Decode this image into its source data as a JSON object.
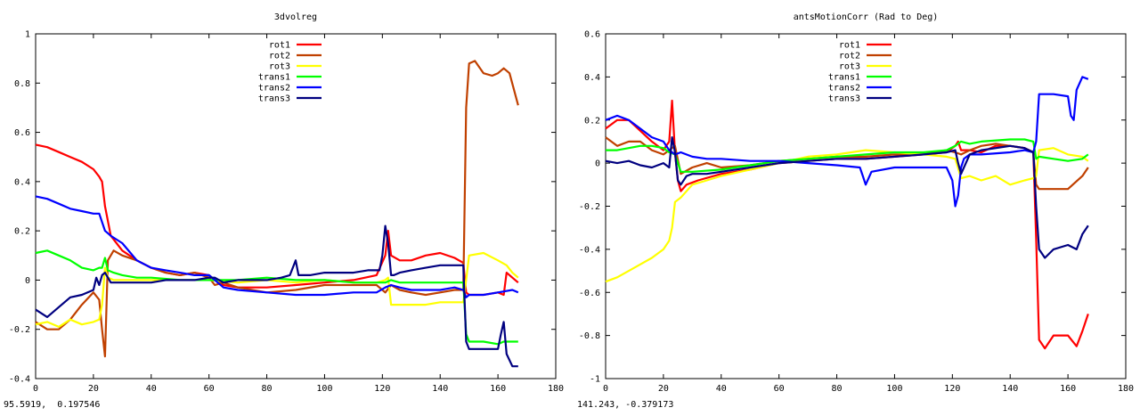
{
  "status": {
    "left_coords": "95.5919,  0.197546",
    "right_coords": "141.243, -0.379173"
  },
  "chart_data": [
    {
      "type": "line",
      "title": "3dvolreg",
      "xlabel": "",
      "ylabel": "",
      "xlim": [
        0,
        180
      ],
      "ylim": [
        -0.4,
        1
      ],
      "x_ticks": [
        0,
        20,
        40,
        60,
        80,
        100,
        120,
        140,
        160,
        180
      ],
      "y_ticks": [
        -0.4,
        -0.2,
        0,
        0.2,
        0.4,
        0.6,
        0.8,
        1
      ],
      "y_tick_labels": [
        "-0.4",
        "-0.2",
        "0",
        "0.2",
        "0.4",
        "0.6",
        "0.8",
        "1"
      ],
      "grid": false,
      "legend_position": "top-center",
      "series": [
        {
          "name": "rot1",
          "color": "#ff0000",
          "x": [
            0,
            4,
            8,
            12,
            16,
            20,
            22,
            23,
            24,
            26,
            30,
            35,
            40,
            45,
            50,
            55,
            60,
            62,
            65,
            70,
            80,
            90,
            100,
            110,
            118,
            121,
            122,
            123,
            126,
            130,
            135,
            140,
            145,
            148,
            149,
            150,
            155,
            160,
            162,
            163,
            165,
            167
          ],
          "y": [
            0.55,
            0.54,
            0.52,
            0.5,
            0.48,
            0.45,
            0.42,
            0.4,
            0.3,
            0.18,
            0.12,
            0.08,
            0.05,
            0.03,
            0.02,
            0.03,
            0.02,
            0.0,
            -0.02,
            -0.03,
            -0.03,
            -0.02,
            -0.01,
            0.0,
            0.02,
            0.1,
            0.2,
            0.1,
            0.08,
            0.08,
            0.1,
            0.11,
            0.09,
            0.07,
            -0.05,
            -0.06,
            -0.06,
            -0.05,
            -0.06,
            0.03,
            0.01,
            -0.01
          ]
        },
        {
          "name": "rot2",
          "color": "#c04000",
          "x": [
            0,
            4,
            8,
            12,
            16,
            20,
            22,
            23,
            24,
            25,
            27,
            30,
            35,
            40,
            45,
            50,
            55,
            60,
            62,
            65,
            70,
            80,
            90,
            100,
            110,
            118,
            121,
            123,
            126,
            130,
            135,
            140,
            145,
            148,
            149,
            150,
            152,
            155,
            158,
            160,
            162,
            164,
            167
          ],
          "y": [
            -0.17,
            -0.2,
            -0.2,
            -0.16,
            -0.1,
            -0.05,
            -0.08,
            -0.2,
            -0.31,
            0.08,
            0.12,
            0.1,
            0.08,
            0.05,
            0.03,
            0.02,
            0.03,
            0.01,
            -0.02,
            -0.01,
            -0.03,
            -0.05,
            -0.04,
            -0.02,
            -0.02,
            -0.02,
            -0.05,
            -0.02,
            -0.04,
            -0.05,
            -0.06,
            -0.05,
            -0.04,
            -0.04,
            0.7,
            0.88,
            0.89,
            0.84,
            0.83,
            0.84,
            0.86,
            0.84,
            0.71
          ]
        },
        {
          "name": "rot3",
          "color": "#ffff00",
          "x": [
            0,
            4,
            8,
            12,
            16,
            20,
            22,
            23,
            24,
            25,
            27,
            30,
            35,
            40,
            50,
            60,
            70,
            80,
            90,
            100,
            110,
            118,
            121,
            122,
            123,
            126,
            130,
            135,
            140,
            145,
            148,
            149,
            150,
            155,
            160,
            163,
            165,
            167
          ],
          "y": [
            -0.18,
            -0.17,
            -0.19,
            -0.16,
            -0.18,
            -0.17,
            -0.16,
            -0.1,
            0.05,
            0.01,
            0.0,
            0.0,
            0.0,
            0.0,
            0.0,
            0.0,
            -0.01,
            0.0,
            -0.01,
            0.0,
            -0.01,
            -0.01,
            0.0,
            0.01,
            -0.1,
            -0.1,
            -0.1,
            -0.1,
            -0.09,
            -0.09,
            -0.09,
            0.0,
            0.1,
            0.11,
            0.08,
            0.06,
            0.03,
            0.01
          ]
        },
        {
          "name": "trans1",
          "color": "#00ff00",
          "x": [
            0,
            4,
            8,
            12,
            16,
            20,
            22,
            23,
            24,
            25,
            27,
            30,
            35,
            40,
            50,
            60,
            70,
            80,
            90,
            100,
            110,
            118,
            121,
            123,
            126,
            130,
            140,
            148,
            149,
            150,
            155,
            160,
            162,
            163,
            165,
            167
          ],
          "y": [
            0.11,
            0.12,
            0.1,
            0.08,
            0.05,
            0.04,
            0.05,
            0.05,
            0.09,
            0.04,
            0.03,
            0.02,
            0.01,
            0.01,
            0.0,
            0.0,
            0.0,
            0.01,
            0.0,
            0.0,
            -0.01,
            -0.01,
            -0.01,
            0.0,
            -0.01,
            -0.01,
            -0.01,
            -0.01,
            -0.22,
            -0.25,
            -0.25,
            -0.26,
            -0.25,
            -0.25,
            -0.25,
            -0.25
          ]
        },
        {
          "name": "trans2",
          "color": "#0000ff",
          "x": [
            0,
            4,
            8,
            12,
            16,
            20,
            22,
            24,
            26,
            30,
            35,
            40,
            45,
            50,
            55,
            60,
            62,
            65,
            70,
            80,
            90,
            100,
            110,
            118,
            121,
            123,
            126,
            130,
            140,
            145,
            148,
            149,
            150,
            155,
            160,
            165,
            167
          ],
          "y": [
            0.34,
            0.33,
            0.31,
            0.29,
            0.28,
            0.27,
            0.27,
            0.2,
            0.18,
            0.15,
            0.08,
            0.05,
            0.04,
            0.03,
            0.02,
            0.02,
            0.0,
            -0.03,
            -0.04,
            -0.05,
            -0.06,
            -0.06,
            -0.05,
            -0.05,
            -0.03,
            -0.02,
            -0.03,
            -0.04,
            -0.04,
            -0.03,
            -0.04,
            -0.07,
            -0.06,
            -0.06,
            -0.05,
            -0.04,
            -0.05
          ]
        },
        {
          "name": "trans3",
          "color": "#000080",
          "x": [
            0,
            4,
            8,
            12,
            16,
            20,
            21,
            22,
            23,
            24,
            26,
            30,
            35,
            40,
            45,
            50,
            55,
            60,
            62,
            65,
            70,
            80,
            85,
            88,
            90,
            91,
            95,
            100,
            110,
            115,
            119,
            120,
            121,
            122,
            123,
            124,
            126,
            130,
            135,
            140,
            145,
            148,
            149,
            150,
            155,
            160,
            161,
            162,
            163,
            165,
            167
          ],
          "y": [
            -0.12,
            -0.15,
            -0.11,
            -0.07,
            -0.06,
            -0.04,
            0.01,
            -0.02,
            0.02,
            0.03,
            -0.01,
            -0.01,
            -0.01,
            -0.01,
            0.0,
            0.0,
            0.0,
            0.01,
            0.01,
            -0.01,
            0.0,
            0.0,
            0.01,
            0.02,
            0.08,
            0.02,
            0.02,
            0.03,
            0.03,
            0.04,
            0.04,
            0.1,
            0.22,
            0.15,
            0.02,
            0.02,
            0.03,
            0.04,
            0.05,
            0.06,
            0.06,
            0.06,
            -0.25,
            -0.28,
            -0.28,
            -0.28,
            -0.22,
            -0.17,
            -0.3,
            -0.35,
            -0.35
          ]
        }
      ]
    },
    {
      "type": "line",
      "title": "antsMotionCorr (Rad to Deg)",
      "xlabel": "",
      "ylabel": "",
      "xlim": [
        0,
        180
      ],
      "ylim": [
        -1,
        0.6
      ],
      "x_ticks": [
        0,
        20,
        40,
        60,
        80,
        100,
        120,
        140,
        160,
        180
      ],
      "y_ticks": [
        -1,
        -0.8,
        -0.6,
        -0.4,
        -0.2,
        0,
        0.2,
        0.4,
        0.6
      ],
      "y_tick_labels": [
        "-1",
        "-0.8",
        "-0.6",
        "-0.4",
        "-0.2",
        "0",
        "0.2",
        "0.4",
        "0.6"
      ],
      "grid": false,
      "legend_position": "top-center",
      "series": [
        {
          "name": "rot1",
          "color": "#ff0000",
          "x": [
            0,
            4,
            8,
            12,
            16,
            20,
            22,
            23,
            24,
            25,
            26,
            28,
            32,
            40,
            50,
            60,
            70,
            80,
            90,
            100,
            110,
            118,
            121,
            122,
            123,
            126,
            130,
            135,
            140,
            145,
            148,
            149,
            150,
            152,
            155,
            160,
            163,
            165,
            167
          ],
          "y": [
            0.16,
            0.2,
            0.2,
            0.15,
            0.1,
            0.06,
            0.1,
            0.29,
            0.05,
            -0.08,
            -0.13,
            -0.1,
            -0.08,
            -0.05,
            -0.03,
            0.0,
            0.01,
            0.02,
            0.02,
            0.03,
            0.04,
            0.05,
            0.08,
            0.1,
            0.06,
            0.06,
            0.05,
            0.08,
            0.08,
            0.07,
            0.05,
            -0.35,
            -0.82,
            -0.86,
            -0.8,
            -0.8,
            -0.85,
            -0.78,
            -0.7
          ]
        },
        {
          "name": "rot2",
          "color": "#c04000",
          "x": [
            0,
            4,
            8,
            12,
            16,
            20,
            22,
            24,
            26,
            30,
            35,
            40,
            50,
            60,
            70,
            80,
            90,
            100,
            110,
            118,
            121,
            123,
            126,
            130,
            135,
            140,
            145,
            148,
            149,
            150,
            155,
            160,
            165,
            167
          ],
          "y": [
            0.12,
            0.08,
            0.1,
            0.1,
            0.06,
            0.04,
            0.06,
            0.08,
            -0.05,
            -0.02,
            0.0,
            -0.02,
            -0.01,
            0.01,
            0.02,
            0.03,
            0.03,
            0.04,
            0.04,
            0.06,
            0.05,
            0.04,
            0.06,
            0.08,
            0.09,
            0.08,
            0.07,
            0.05,
            -0.1,
            -0.12,
            -0.12,
            -0.12,
            -0.06,
            -0.02
          ]
        },
        {
          "name": "rot3",
          "color": "#ffff00",
          "x": [
            0,
            4,
            8,
            12,
            16,
            20,
            22,
            23,
            24,
            26,
            30,
            35,
            40,
            50,
            60,
            70,
            80,
            90,
            100,
            110,
            118,
            121,
            123,
            126,
            130,
            135,
            140,
            145,
            148,
            149,
            150,
            155,
            160,
            165,
            167
          ],
          "y": [
            -0.55,
            -0.53,
            -0.5,
            -0.47,
            -0.44,
            -0.4,
            -0.36,
            -0.3,
            -0.18,
            -0.16,
            -0.1,
            -0.08,
            -0.06,
            -0.03,
            0.0,
            0.03,
            0.04,
            0.06,
            0.05,
            0.04,
            0.03,
            0.02,
            -0.07,
            -0.06,
            -0.08,
            -0.06,
            -0.1,
            -0.08,
            -0.07,
            -0.06,
            0.06,
            0.07,
            0.04,
            0.03,
            0.01
          ]
        },
        {
          "name": "trans1",
          "color": "#00ff00",
          "x": [
            0,
            4,
            8,
            12,
            16,
            20,
            22,
            24,
            26,
            30,
            40,
            50,
            60,
            70,
            80,
            90,
            100,
            110,
            118,
            121,
            123,
            126,
            130,
            140,
            145,
            148,
            149,
            150,
            155,
            160,
            165,
            167
          ],
          "y": [
            0.06,
            0.06,
            0.07,
            0.08,
            0.08,
            0.07,
            0.05,
            0.04,
            -0.04,
            -0.04,
            -0.03,
            -0.01,
            0.01,
            0.02,
            0.03,
            0.04,
            0.05,
            0.05,
            0.06,
            0.08,
            0.1,
            0.09,
            0.1,
            0.11,
            0.11,
            0.1,
            0.02,
            0.03,
            0.02,
            0.01,
            0.02,
            0.04
          ]
        },
        {
          "name": "trans2",
          "color": "#0000ff",
          "x": [
            0,
            4,
            8,
            12,
            16,
            20,
            22,
            24,
            26,
            30,
            35,
            40,
            50,
            60,
            70,
            80,
            88,
            89,
            90,
            92,
            100,
            110,
            118,
            120,
            121,
            122,
            123,
            124,
            126,
            130,
            140,
            145,
            148,
            149,
            150,
            155,
            160,
            161,
            162,
            163,
            165,
            167
          ],
          "y": [
            0.2,
            0.22,
            0.2,
            0.16,
            0.12,
            0.1,
            0.06,
            0.04,
            0.05,
            0.03,
            0.02,
            0.02,
            0.01,
            0.01,
            0.0,
            -0.01,
            -0.02,
            -0.06,
            -0.1,
            -0.04,
            -0.02,
            -0.02,
            -0.02,
            -0.08,
            -0.2,
            -0.15,
            -0.02,
            0.02,
            0.04,
            0.04,
            0.05,
            0.06,
            0.05,
            0.1,
            0.32,
            0.32,
            0.31,
            0.22,
            0.2,
            0.34,
            0.4,
            0.39
          ]
        },
        {
          "name": "trans3",
          "color": "#000080",
          "x": [
            0,
            4,
            8,
            12,
            16,
            20,
            22,
            23,
            24,
            25,
            26,
            28,
            30,
            35,
            40,
            50,
            60,
            70,
            80,
            90,
            100,
            110,
            118,
            121,
            122,
            123,
            126,
            130,
            140,
            145,
            148,
            149,
            150,
            152,
            155,
            160,
            163,
            165,
            167
          ],
          "y": [
            0.01,
            0.0,
            0.01,
            -0.01,
            -0.02,
            0.0,
            -0.02,
            0.12,
            0.05,
            -0.08,
            -0.1,
            -0.06,
            -0.05,
            -0.05,
            -0.04,
            -0.02,
            0.0,
            0.01,
            0.02,
            0.02,
            0.03,
            0.04,
            0.05,
            0.06,
            0.0,
            -0.05,
            0.04,
            0.06,
            0.08,
            0.07,
            0.05,
            -0.2,
            -0.4,
            -0.44,
            -0.4,
            -0.38,
            -0.4,
            -0.33,
            -0.29
          ]
        }
      ]
    }
  ]
}
